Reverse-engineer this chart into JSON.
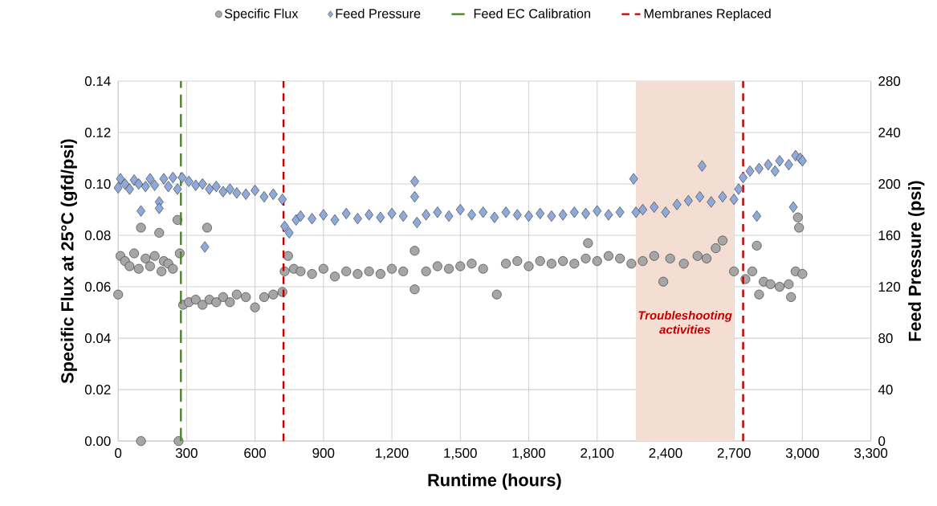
{
  "chart_data": {
    "type": "scatter",
    "xlabel": "Runtime (hours)",
    "ylabel": "Specific Flux at 25°C (gfd/psi)",
    "y2label": "Feed Pressure (psi)",
    "xlim": [
      0,
      3300
    ],
    "xticks": [
      0,
      300,
      600,
      900,
      {
        "value": 1200,
        "label": "1,200"
      },
      {
        "value": 1500,
        "label": "1,500"
      },
      {
        "value": 1800,
        "label": "1,800"
      },
      {
        "value": 2100,
        "label": "2,100"
      },
      {
        "value": 2400,
        "label": "2,400"
      },
      {
        "value": 2700,
        "label": "2,700"
      },
      {
        "value": 3000,
        "label": "3,000"
      },
      {
        "value": 3300,
        "label": "3,300"
      }
    ],
    "ylim": [
      0,
      0.14
    ],
    "yticks": [
      {
        "value": 0,
        "label": "0.00"
      },
      {
        "value": 0.02,
        "label": "0.02"
      },
      {
        "value": 0.04,
        "label": "0.04"
      },
      {
        "value": 0.06,
        "label": "0.06"
      },
      {
        "value": 0.08,
        "label": "0.08"
      },
      {
        "value": 0.1,
        "label": "0.10"
      },
      {
        "value": 0.12,
        "label": "0.12"
      },
      {
        "value": 0.14,
        "label": "0.14"
      }
    ],
    "y2lim": [
      0,
      280
    ],
    "y2ticks": [
      0,
      40,
      80,
      120,
      160,
      200,
      240,
      280
    ],
    "grid": true,
    "legend": "top",
    "series": [
      {
        "name": "Specific Flux",
        "color": "#a6a6a6",
        "marker": "circle",
        "x": [
          0,
          10,
          30,
          50,
          70,
          90,
          100,
          100,
          120,
          140,
          160,
          180,
          190,
          200,
          220,
          240,
          260,
          265,
          270,
          285,
          310,
          340,
          370,
          390,
          400,
          430,
          460,
          490,
          520,
          560,
          600,
          640,
          680,
          720,
          730,
          745,
          770,
          800,
          850,
          900,
          950,
          1000,
          1050,
          1100,
          1150,
          1200,
          1250,
          1300,
          1300,
          1350,
          1400,
          1450,
          1500,
          1550,
          1600,
          1660,
          1700,
          1750,
          1800,
          1850,
          1900,
          1950,
          2000,
          2050,
          2060,
          2100,
          2150,
          2200,
          2250,
          2300,
          2350,
          2390,
          2420,
          2480,
          2540,
          2580,
          2620,
          2650,
          2700,
          2750,
          2780,
          2800,
          2810,
          2830,
          2860,
          2900,
          2940,
          2950,
          2970,
          2980,
          2985,
          3000
        ],
        "values": [
          0.057,
          0.072,
          0.07,
          0.068,
          0.073,
          0.067,
          0.0,
          0.083,
          0.071,
          0.068,
          0.072,
          0.081,
          0.066,
          0.07,
          0.069,
          0.067,
          0.086,
          0.0,
          0.073,
          0.053,
          0.054,
          0.055,
          0.053,
          0.083,
          0.055,
          0.054,
          0.056,
          0.054,
          0.057,
          0.056,
          0.052,
          0.056,
          0.057,
          0.058,
          0.066,
          0.072,
          0.067,
          0.066,
          0.065,
          0.067,
          0.064,
          0.066,
          0.065,
          0.066,
          0.065,
          0.067,
          0.066,
          0.059,
          0.074,
          0.066,
          0.068,
          0.067,
          0.068,
          0.069,
          0.067,
          0.057,
          0.069,
          0.07,
          0.068,
          0.07,
          0.069,
          0.07,
          0.069,
          0.071,
          0.077,
          0.07,
          0.072,
          0.071,
          0.069,
          0.07,
          0.072,
          0.062,
          0.071,
          0.069,
          0.072,
          0.071,
          0.075,
          0.078,
          0.066,
          0.063,
          0.066,
          0.076,
          0.057,
          0.062,
          0.061,
          0.06,
          0.061,
          0.056,
          0.066,
          0.087,
          0.083,
          0.065
        ]
      },
      {
        "name": "Feed Pressure",
        "color": "#8eaadb",
        "marker": "diamond",
        "axis": "y2",
        "x": [
          0,
          10,
          30,
          50,
          70,
          90,
          100,
          120,
          140,
          160,
          180,
          180,
          200,
          220,
          240,
          260,
          280,
          310,
          340,
          370,
          380,
          400,
          430,
          460,
          490,
          520,
          560,
          600,
          640,
          680,
          720,
          730,
          750,
          780,
          800,
          850,
          900,
          950,
          1000,
          1050,
          1100,
          1150,
          1200,
          1250,
          1300,
          1300,
          1310,
          1350,
          1400,
          1450,
          1500,
          1550,
          1600,
          1650,
          1700,
          1750,
          1800,
          1850,
          1900,
          1950,
          2000,
          2050,
          2100,
          2150,
          2200,
          2260,
          2270,
          2300,
          2350,
          2400,
          2450,
          2500,
          2550,
          2560,
          2600,
          2650,
          2700,
          2720,
          2740,
          2770,
          2800,
          2810,
          2850,
          2880,
          2900,
          2940,
          2960,
          2970,
          2990,
          3000
        ],
        "values": [
          197,
          204,
          200,
          196,
          203,
          200,
          179,
          198,
          204,
          199,
          186,
          181,
          204,
          198,
          205,
          196,
          205,
          202,
          199,
          200,
          151,
          196,
          198,
          194,
          196,
          193,
          192,
          195,
          190,
          192,
          188,
          167,
          162,
          172,
          175,
          173,
          176,
          172,
          177,
          173,
          176,
          174,
          177,
          175,
          202,
          190,
          170,
          176,
          178,
          175,
          180,
          176,
          178,
          174,
          178,
          176,
          175,
          177,
          175,
          176,
          178,
          177,
          179,
          176,
          178,
          204,
          178,
          180,
          182,
          178,
          184,
          187,
          190,
          214,
          186,
          190,
          188,
          196,
          205,
          210,
          175,
          212,
          215,
          210,
          218,
          215,
          182,
          222,
          220,
          218
        ]
      }
    ],
    "ref_lines": [
      {
        "axis": "x",
        "value": 275,
        "label": "Feed EC Calibration",
        "color": "#548235",
        "line_style": "longdash"
      },
      {
        "axis": "x",
        "value": 725,
        "label": "Membranes Replaced",
        "color": "#c00000",
        "line_style": "dashed"
      },
      {
        "axis": "x",
        "value": 2740,
        "label": null,
        "color": "#c00000",
        "line_style": "dashed"
      }
    ],
    "bands": [
      {
        "axis": "x",
        "from": 2270,
        "to": 2700,
        "label": "Troubleshooting activities",
        "color": "#f4ddd3"
      }
    ]
  }
}
